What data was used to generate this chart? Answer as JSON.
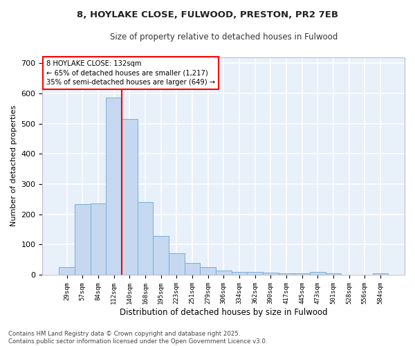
{
  "title_line1": "8, HOYLAKE CLOSE, FULWOOD, PRESTON, PR2 7EB",
  "title_line2": "Size of property relative to detached houses in Fulwood",
  "xlabel": "Distribution of detached houses by size in Fulwood",
  "ylabel": "Number of detached properties",
  "categories": [
    "29sqm",
    "57sqm",
    "84sqm",
    "112sqm",
    "140sqm",
    "168sqm",
    "195sqm",
    "223sqm",
    "251sqm",
    "279sqm",
    "306sqm",
    "334sqm",
    "362sqm",
    "390sqm",
    "417sqm",
    "445sqm",
    "473sqm",
    "501sqm",
    "528sqm",
    "556sqm",
    "584sqm"
  ],
  "values": [
    25,
    233,
    235,
    585,
    515,
    240,
    128,
    70,
    40,
    25,
    14,
    10,
    10,
    6,
    5,
    5,
    8,
    5,
    0,
    0,
    5
  ],
  "bar_color": "#c5d8f0",
  "bar_edge_color": "#7aadd4",
  "bg_color": "#e8f0fa",
  "grid_color": "#ffffff",
  "vline_color": "red",
  "annotation_text": "8 HOYLAKE CLOSE: 132sqm\n← 65% of detached houses are smaller (1,217)\n35% of semi-detached houses are larger (649) →",
  "annotation_box_color": "red",
  "footer_line1": "Contains HM Land Registry data © Crown copyright and database right 2025.",
  "footer_line2": "Contains public sector information licensed under the Open Government Licence v3.0.",
  "ylim": [
    0,
    720
  ],
  "yticks": [
    0,
    100,
    200,
    300,
    400,
    500,
    600,
    700
  ],
  "vline_pos": 3.5
}
